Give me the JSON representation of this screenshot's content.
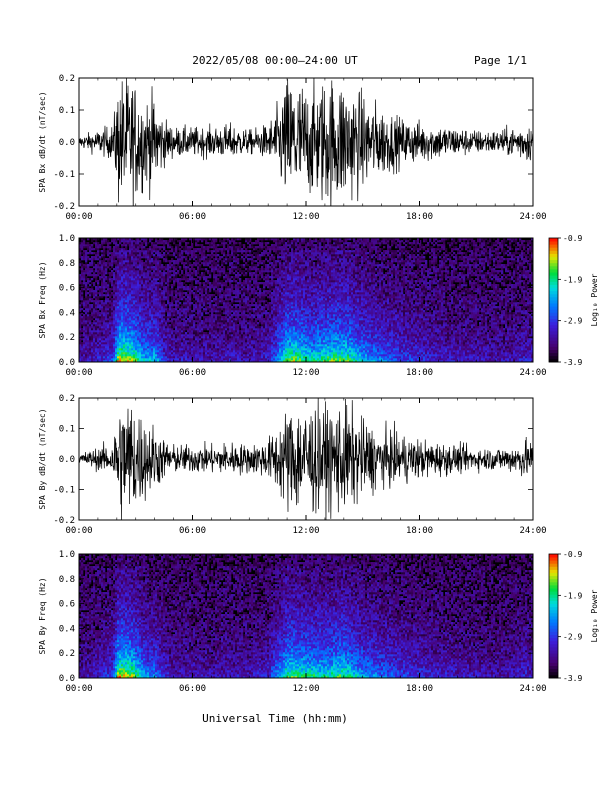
{
  "header": {
    "title": "2022/05/08  00:00–24:00 UT",
    "page": "Page 1/1"
  },
  "footer": {
    "xlabel": "Universal Time (hh:mm)"
  },
  "chart_data": [
    {
      "type": "line",
      "panel_id": "p1",
      "ylabel": "SPA Bx dB/dt (nT/sec)",
      "xlabel": "",
      "x_ticks": [
        "00:00",
        "06:00",
        "12:00",
        "18:00",
        "24:00"
      ],
      "xlim_hours": [
        0,
        24
      ],
      "ylim": [
        -0.2,
        0.2
      ],
      "y_ticks": [
        "0.2",
        "0.1",
        "0.0",
        "-0.1",
        "-0.2"
      ],
      "y_tick_values": [
        0.2,
        0.1,
        0.0,
        -0.1,
        -0.2
      ],
      "series": [
        {
          "color": "#000000",
          "envelope_hours": [
            0,
            1,
            1.8,
            2.1,
            2.8,
            3.5,
            4,
            4.5,
            5,
            6,
            7,
            8,
            9,
            10,
            10.5,
            11,
            11.5,
            12.2,
            13,
            14,
            15,
            16,
            17,
            18,
            19,
            20,
            21,
            22,
            23,
            23.6,
            24
          ],
          "envelope_amplitude": [
            0.02,
            0.04,
            0.06,
            0.22,
            0.22,
            0.15,
            0.16,
            0.08,
            0.05,
            0.05,
            0.05,
            0.06,
            0.04,
            0.06,
            0.12,
            0.22,
            0.22,
            0.18,
            0.22,
            0.22,
            0.16,
            0.12,
            0.08,
            0.07,
            0.06,
            0.05,
            0.04,
            0.04,
            0.05,
            0.07,
            0.06
          ]
        }
      ]
    },
    {
      "type": "heatmap",
      "panel_id": "p2",
      "ylabel": "SPA Bx Freq (Hz)",
      "xlabel": "",
      "x_ticks": [
        "00:00",
        "06:00",
        "12:00",
        "18:00",
        "24:00"
      ],
      "xlim_hours": [
        0,
        24
      ],
      "ylim": [
        0,
        1.0
      ],
      "y_ticks": [
        "1.0",
        "0.8",
        "0.6",
        "0.4",
        "0.2",
        "0.0"
      ],
      "y_tick_values": [
        1.0,
        0.8,
        0.6,
        0.4,
        0.2,
        0.0
      ],
      "colorbar": {
        "label": "Log₁₀ Power",
        "ticks": [
          "-0.9",
          "-1.9",
          "-2.9",
          "-3.9"
        ],
        "tick_values": [
          -0.9,
          -1.9,
          -2.9,
          -3.9
        ],
        "range": [
          -3.9,
          -0.9
        ]
      },
      "activity_hours": [
        0,
        1,
        1.8,
        2.1,
        2.8,
        3.5,
        4,
        4.5,
        5,
        6,
        7,
        8,
        9,
        10,
        10.5,
        11,
        11.5,
        12.2,
        13,
        14,
        15,
        16,
        17,
        18,
        19,
        20,
        21,
        22,
        23,
        23.6,
        24
      ],
      "activity_level": [
        0.15,
        0.25,
        0.35,
        1.0,
        0.9,
        0.55,
        0.6,
        0.3,
        0.2,
        0.2,
        0.18,
        0.22,
        0.18,
        0.25,
        0.5,
        0.85,
        0.85,
        0.7,
        0.8,
        0.85,
        0.6,
        0.45,
        0.35,
        0.3,
        0.25,
        0.22,
        0.2,
        0.18,
        0.2,
        0.25,
        0.22
      ]
    },
    {
      "type": "line",
      "panel_id": "p3",
      "ylabel": "SPA By dB/dt (nT/sec)",
      "xlabel": "",
      "x_ticks": [
        "00:00",
        "06:00",
        "12:00",
        "18:00",
        "24:00"
      ],
      "xlim_hours": [
        0,
        24
      ],
      "ylim": [
        -0.2,
        0.2
      ],
      "y_ticks": [
        "0.2",
        "0.1",
        "0.0",
        "-0.1",
        "-0.2"
      ],
      "y_tick_values": [
        0.2,
        0.1,
        0.0,
        -0.1,
        -0.2
      ],
      "series": [
        {
          "color": "#000000",
          "envelope_hours": [
            0,
            1,
            1.8,
            2.1,
            2.8,
            3.5,
            4,
            4.5,
            5,
            6,
            7,
            8,
            9,
            10,
            10.5,
            11,
            11.5,
            12.2,
            13,
            14,
            15,
            16,
            17,
            18,
            19,
            20,
            21,
            22,
            23,
            23.6,
            24
          ],
          "envelope_amplitude": [
            0.02,
            0.04,
            0.06,
            0.22,
            0.22,
            0.14,
            0.12,
            0.07,
            0.05,
            0.05,
            0.05,
            0.06,
            0.05,
            0.07,
            0.12,
            0.18,
            0.2,
            0.2,
            0.18,
            0.2,
            0.14,
            0.1,
            0.09,
            0.07,
            0.06,
            0.05,
            0.04,
            0.04,
            0.05,
            0.07,
            0.06
          ]
        }
      ]
    },
    {
      "type": "heatmap",
      "panel_id": "p4",
      "ylabel": "SPA By Freq (Hz)",
      "xlabel": "",
      "x_ticks": [
        "00:00",
        "06:00",
        "12:00",
        "18:00",
        "24:00"
      ],
      "xlim_hours": [
        0,
        24
      ],
      "ylim": [
        0,
        1.0
      ],
      "y_ticks": [
        "1.0",
        "0.8",
        "0.6",
        "0.4",
        "0.2",
        "0.0"
      ],
      "y_tick_values": [
        1.0,
        0.8,
        0.6,
        0.4,
        0.2,
        0.0
      ],
      "colorbar": {
        "label": "Log₁₀ Power",
        "ticks": [
          "-0.9",
          "-1.9",
          "-2.9",
          "-3.9"
        ],
        "tick_values": [
          -0.9,
          -1.9,
          -2.9,
          -3.9
        ],
        "range": [
          -3.9,
          -0.9
        ]
      },
      "activity_hours": [
        0,
        1,
        1.8,
        2.1,
        2.8,
        3.5,
        4,
        4.5,
        5,
        6,
        7,
        8,
        9,
        10,
        10.5,
        11,
        11.5,
        12.2,
        13,
        14,
        15,
        16,
        17,
        18,
        19,
        20,
        21,
        22,
        23,
        23.6,
        24
      ],
      "activity_level": [
        0.15,
        0.25,
        0.35,
        1.0,
        0.9,
        0.5,
        0.5,
        0.3,
        0.2,
        0.2,
        0.18,
        0.22,
        0.2,
        0.28,
        0.5,
        0.8,
        0.8,
        0.75,
        0.7,
        0.8,
        0.55,
        0.45,
        0.35,
        0.3,
        0.25,
        0.22,
        0.2,
        0.18,
        0.2,
        0.25,
        0.22
      ]
    }
  ]
}
